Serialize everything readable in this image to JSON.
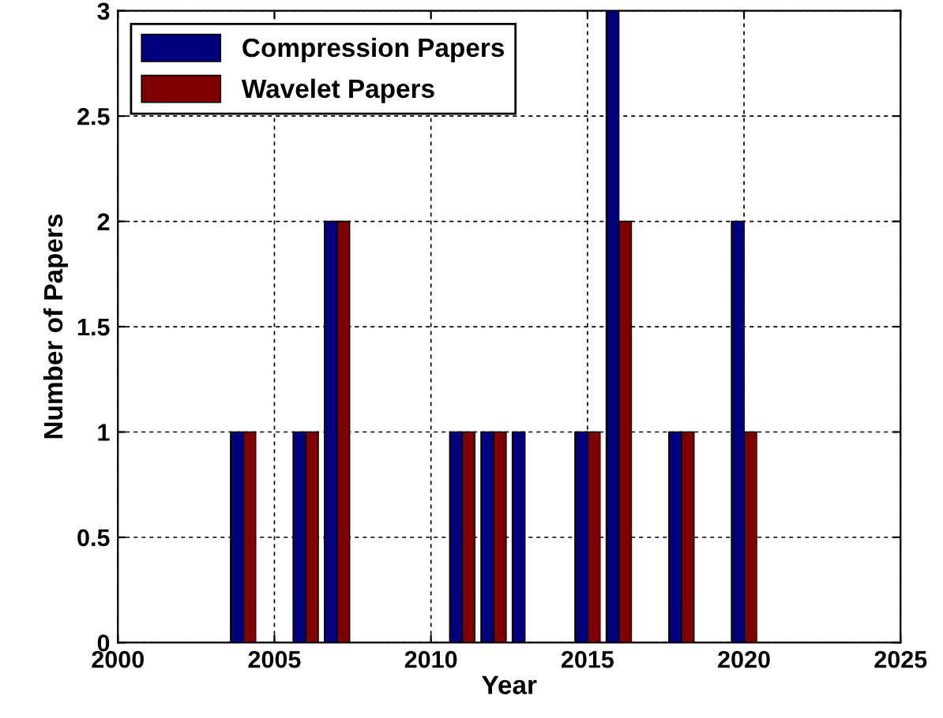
{
  "chart_data": {
    "type": "bar",
    "xlabel": "Year",
    "ylabel": "Number of Papers",
    "x": [
      2004,
      2006,
      2007,
      2011,
      2012,
      2013,
      2015,
      2016,
      2018,
      2020
    ],
    "series": [
      {
        "name": "Compression Papers",
        "color": "#00007f",
        "values": [
          1,
          1,
          2,
          1,
          1,
          1,
          1,
          3,
          1,
          2
        ]
      },
      {
        "name": "Wavelet Papers",
        "color": "#7f0000",
        "values": [
          1,
          1,
          2,
          1,
          1,
          null,
          1,
          2,
          1,
          1
        ]
      }
    ],
    "xlim": [
      2000,
      2025
    ],
    "xticks": [
      2000,
      2005,
      2010,
      2015,
      2020,
      2025
    ],
    "ylim": [
      0,
      3
    ],
    "yticks": [
      0,
      0.5,
      1,
      1.5,
      2,
      2.5,
      3
    ],
    "grid": true,
    "legend": "top left"
  }
}
